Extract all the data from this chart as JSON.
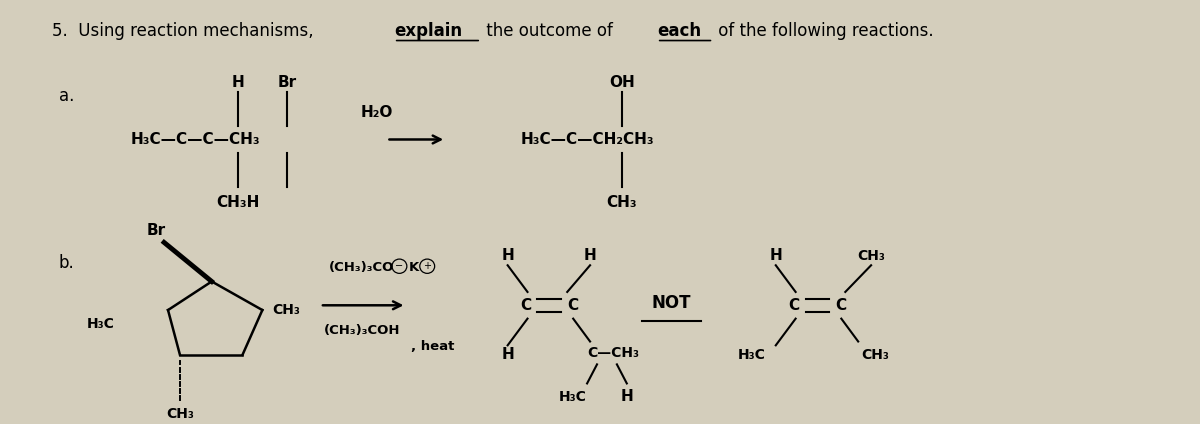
{
  "bg_color": "#d4cebc",
  "fig_width": 12.0,
  "fig_height": 4.24,
  "title_parts": [
    {
      "text": "5.  Using reaction mechanisms, ",
      "bold": false
    },
    {
      "text": "explain",
      "bold": true,
      "underline": true
    },
    {
      "text": " the outcome of ",
      "bold": false
    },
    {
      "text": "each",
      "bold": true,
      "underline": true
    },
    {
      "text": " of the following reactions.",
      "bold": false
    }
  ]
}
